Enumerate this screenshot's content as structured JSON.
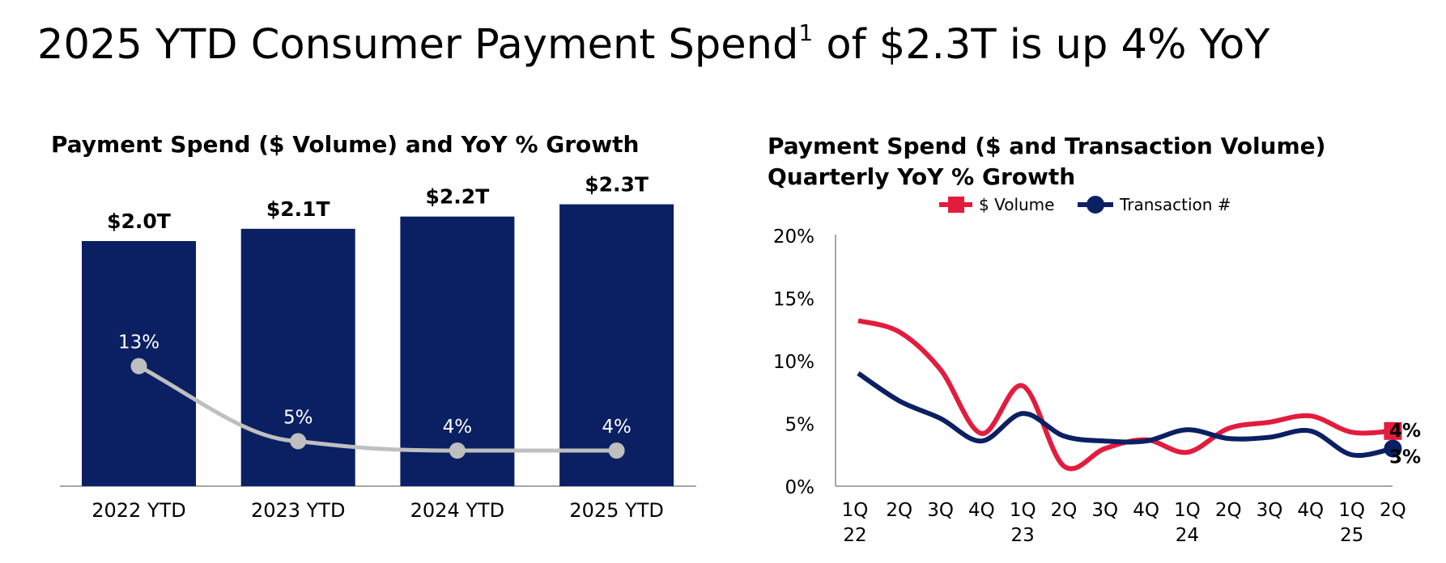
{
  "page": {
    "title": "2025 YTD Consumer Payment Spend",
    "title_superscript": "1",
    "title_rest": " of $2.3T is up 4% YoY"
  },
  "colors": {
    "bar": "#0a2063",
    "growth_line": "#bfbfbf",
    "volume_series": "#e31c3d",
    "transaction_series": "#0a2063",
    "axis": "#a6a6a6"
  },
  "chart_data": [
    {
      "type": "bar",
      "title": "Payment Spend ($ Volume) and YoY % Growth",
      "categories": [
        "2022 YTD",
        "2023 YTD",
        "2024 YTD",
        "2025 YTD"
      ],
      "values": [
        2.0,
        2.1,
        2.2,
        2.3
      ],
      "value_labels": [
        "$2.0T",
        "$2.1T",
        "$2.2T",
        "$2.3T"
      ],
      "growth_line": {
        "values": [
          13,
          5,
          4,
          4
        ],
        "labels": [
          "13%",
          "5%",
          "4%",
          "4%"
        ]
      },
      "ylim": [
        0,
        2.6
      ],
      "grid": false
    },
    {
      "type": "line",
      "title": "Payment Spend ($ and Transaction Volume) Quarterly YoY % Growth",
      "title_lines": [
        "Payment Spend ($ and Transaction Volume)",
        "Quarterly YoY % Growth"
      ],
      "x": [
        "1Q 22",
        "2Q",
        "3Q",
        "4Q",
        "1Q 23",
        "2Q",
        "3Q",
        "4Q",
        "1Q 24",
        "2Q",
        "3Q",
        "4Q",
        "1Q 25",
        "2Q"
      ],
      "x_tick_lines": [
        [
          "1Q",
          "22"
        ],
        [
          "2Q"
        ],
        [
          "3Q"
        ],
        [
          "4Q"
        ],
        [
          "1Q",
          "23"
        ],
        [
          "2Q"
        ],
        [
          "3Q"
        ],
        [
          "4Q"
        ],
        [
          "1Q",
          "24"
        ],
        [
          "2Q"
        ],
        [
          "3Q"
        ],
        [
          "4Q"
        ],
        [
          "1Q",
          "25"
        ],
        [
          "2Q"
        ]
      ],
      "y_ticks": [
        "0%",
        "5%",
        "10%",
        "15%",
        "20%"
      ],
      "ylim": [
        0,
        20
      ],
      "legend": "top",
      "grid": false,
      "series": [
        {
          "name": "$ Volume",
          "values": [
            13.2,
            12.3,
            9.3,
            4.2,
            8.0,
            1.6,
            3.0,
            3.7,
            2.7,
            4.6,
            5.1,
            5.6,
            4.3,
            4.4
          ],
          "end_label": "4%"
        },
        {
          "name": "Transaction #",
          "values": [
            9.0,
            6.8,
            5.4,
            3.6,
            5.8,
            4.0,
            3.6,
            3.6,
            4.5,
            3.8,
            3.9,
            4.4,
            2.5,
            3.0
          ],
          "end_label": "3%"
        }
      ]
    }
  ]
}
